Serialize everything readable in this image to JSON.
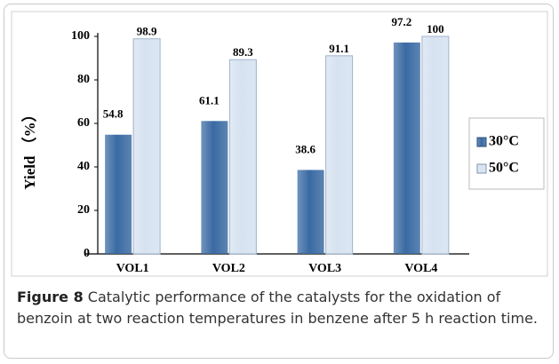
{
  "chart_data": {
    "type": "bar",
    "categories": [
      "VOL1",
      "VOL2",
      "VOL3",
      "VOL4"
    ],
    "series": [
      {
        "name": "30°C",
        "color": "#3a6aa3",
        "values": [
          54.8,
          61.1,
          38.6,
          97.2
        ]
      },
      {
        "name": "50°C",
        "color": "#d6e2f0",
        "values": [
          98.9,
          89.3,
          91.1,
          100
        ]
      }
    ],
    "ylabel": "Yield （%）",
    "ylim": [
      0,
      100
    ],
    "yticks": [
      0,
      20,
      40,
      60,
      80,
      100
    ],
    "grid": false,
    "legend": "right",
    "figure_label": "Figure 8",
    "caption": "Catalytic performance of the catalysts for the oxidation of benzoin at two reaction temperatures in benzene after 5 h reaction time."
  }
}
